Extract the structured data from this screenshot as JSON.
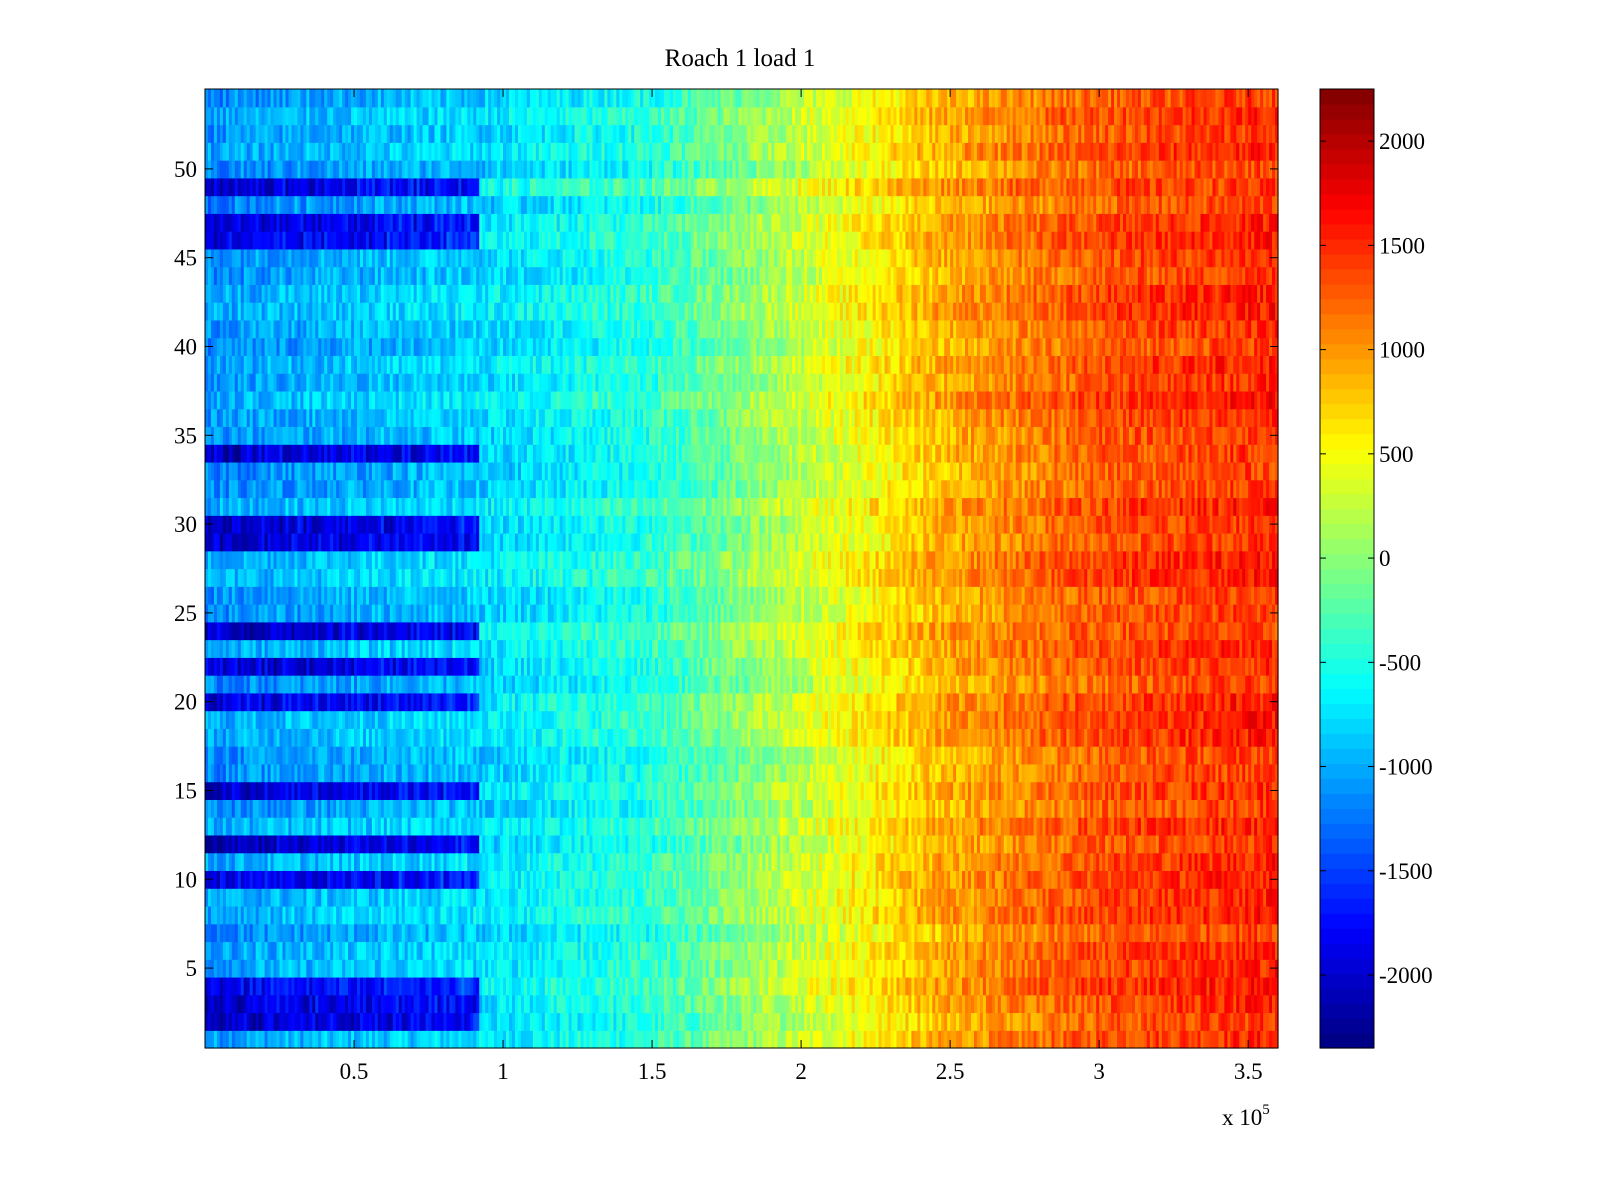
{
  "chart_data": {
    "type": "heatmap",
    "title": "Roach 1 load 1",
    "xlabel": "",
    "ylabel": "",
    "x_multiplier_base": "x 10",
    "x_multiplier_exp": "5",
    "x_range": [
      0,
      3.6
    ],
    "y_range": [
      0.5,
      54.5
    ],
    "rows": 54,
    "x_ticks": [
      0.5,
      1,
      1.5,
      2,
      2.5,
      3,
      3.5
    ],
    "x_tick_labels": [
      "0.5",
      "1",
      "1.5",
      "2",
      "2.5",
      "3",
      "3.5"
    ],
    "y_ticks": [
      5,
      10,
      15,
      20,
      25,
      30,
      35,
      40,
      45,
      50
    ],
    "y_tick_labels": [
      "5",
      "10",
      "15",
      "20",
      "25",
      "30",
      "35",
      "40",
      "45",
      "50"
    ],
    "colorbar": {
      "colormap": "jet",
      "range": [
        -2350,
        2250
      ],
      "ticks": [
        -2000,
        -1500,
        -1000,
        -500,
        0,
        500,
        1000,
        1500,
        2000
      ],
      "tick_labels": [
        "-2000",
        "-1500",
        "-1000",
        "-500",
        "0",
        "500",
        "1000",
        "1500",
        "2000"
      ]
    },
    "segment_break_x": 0.92,
    "profile": {
      "x": [
        0,
        0.92,
        1.5,
        2.0,
        2.5,
        3.0,
        3.6
      ],
      "values": [
        -1100,
        -800,
        -450,
        250,
        900,
        1300,
        1500
      ]
    },
    "dark_rows_left": [
      2,
      3,
      4,
      10,
      12,
      15,
      20,
      22,
      24,
      29,
      30,
      34,
      46,
      47,
      49
    ],
    "bright_rows": [
      24,
      49
    ],
    "grid": false,
    "legend": "none"
  }
}
